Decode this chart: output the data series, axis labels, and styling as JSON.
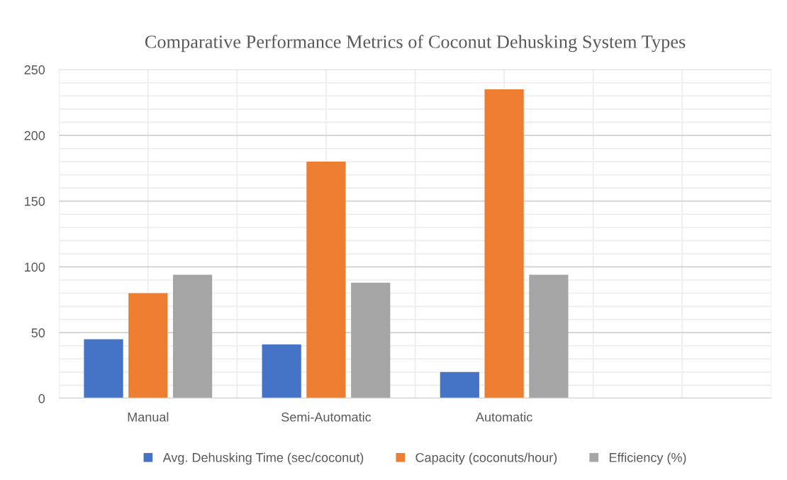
{
  "chart_data": {
    "type": "bar",
    "title": "Comparative Performance Metrics of Coconut Dehusking System Types",
    "categories": [
      "Manual",
      "Semi-Automatic",
      "Automatic",
      null
    ],
    "series": [
      {
        "name": "Avg. Dehusking Time (sec/coconut)",
        "color": "#4472c4",
        "values": [
          45,
          41,
          20,
          null
        ]
      },
      {
        "name": "Capacity (coconuts/hour)",
        "color": "#ed7d31",
        "values": [
          80,
          180,
          235,
          null
        ]
      },
      {
        "name": "Efficiency (%)",
        "color": "#a5a5a5",
        "values": [
          94,
          88,
          94,
          null
        ]
      }
    ],
    "ylim": [
      0,
      250
    ],
    "yticks": [
      0,
      {
        "value": 10,
        "label": null
      },
      {
        "value": 20,
        "label": null
      },
      {
        "value": 30,
        "label": null
      },
      {
        "value": 40,
        "label": null
      },
      50,
      {
        "value": 60,
        "label": null
      },
      {
        "value": 70,
        "label": null
      },
      {
        "value": 80,
        "label": null
      },
      {
        "value": 90,
        "label": null
      },
      100,
      {
        "value": 110,
        "label": null
      },
      {
        "value": 120,
        "label": null
      },
      {
        "value": 130,
        "label": null
      },
      {
        "value": 140,
        "label": null
      },
      150,
      {
        "value": 160,
        "label": null
      },
      {
        "value": 170,
        "label": null
      },
      {
        "value": 180,
        "label": null
      },
      {
        "value": 190,
        "label": null
      },
      200,
      {
        "value": 210,
        "label": null
      },
      {
        "value": 220,
        "label": null
      },
      {
        "value": 230,
        "label": null
      },
      {
        "value": 240,
        "label": null
      },
      250
    ],
    "grid": true,
    "legend": "bottom"
  }
}
